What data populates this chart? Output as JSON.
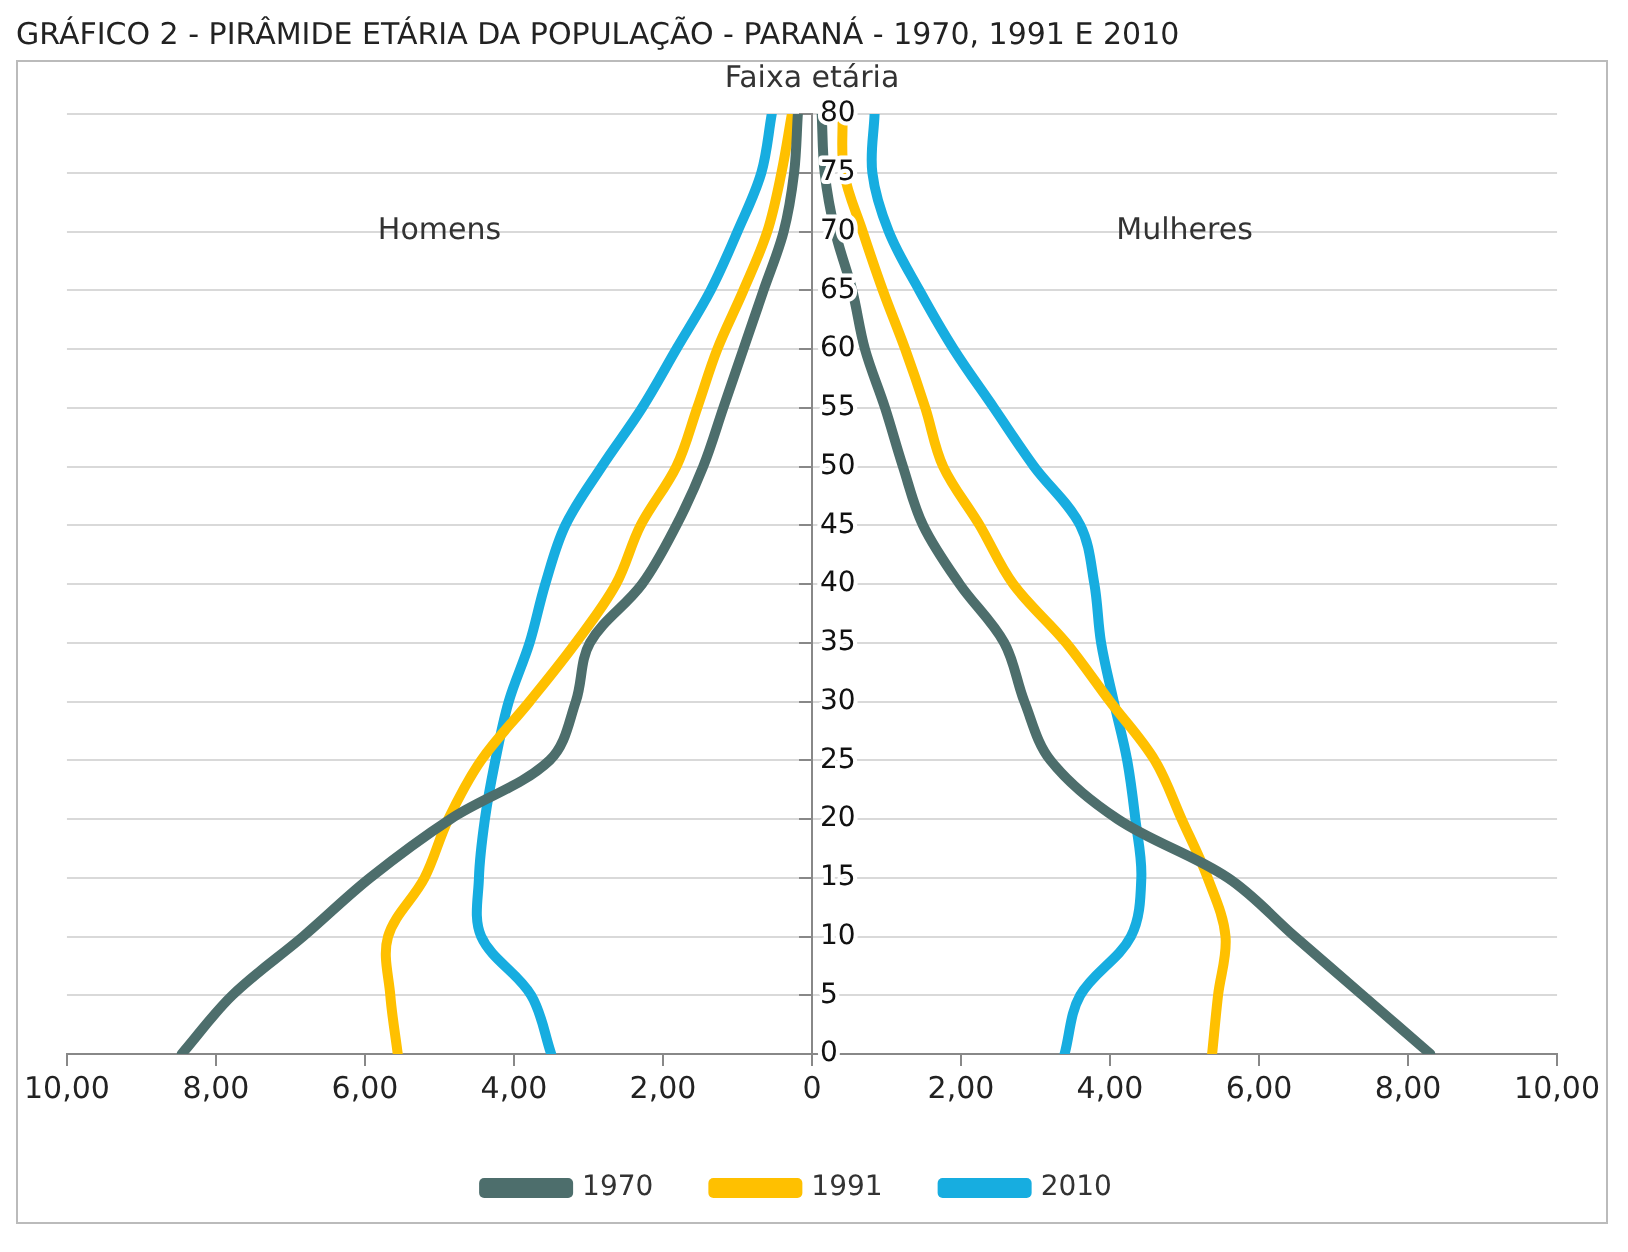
{
  "chart_data": {
    "type": "line",
    "title": "GRÁFICO 2 - PIRÂMIDE ETÁRIA DA POPULAÇÃO - PARANÁ - 1970, 1991 E 2010",
    "ylabel": "Faixa etária",
    "annotations": [
      "Homens",
      "Mulheres"
    ],
    "series": [
      {
        "name": "1970",
        "color": "#4d6e6c",
        "x": [
          -8.46,
          -7.78,
          -6.83,
          -5.93,
          -4.85,
          -3.52,
          -3.17,
          -2.98,
          -2.28,
          -1.82,
          -1.46,
          -1.19,
          -0.92,
          -0.65,
          -0.38,
          -0.24,
          -0.19,
          null,
          0.13,
          0.17,
          0.31,
          0.54,
          0.71,
          0.98,
          1.22,
          1.49,
          1.98,
          2.58,
          2.85,
          3.2,
          4.1,
          5.58,
          6.48,
          7.39,
          8.3
        ],
        "values": [
          0,
          5,
          10,
          15,
          20,
          25,
          30,
          35,
          40,
          45,
          50,
          55,
          60,
          65,
          70,
          75,
          80,
          null,
          80,
          75,
          70,
          65,
          60,
          55,
          50,
          45,
          40,
          35,
          30,
          25,
          20,
          15,
          10,
          5,
          0
        ]
      },
      {
        "name": "1991",
        "color": "#ffc000",
        "x": [
          -5.56,
          -5.66,
          -5.69,
          -5.2,
          -4.88,
          -4.44,
          -3.79,
          -3.17,
          -2.63,
          -2.3,
          -1.82,
          -1.54,
          -1.27,
          -0.92,
          -0.6,
          -0.41,
          -0.27,
          null,
          0.41,
          0.43,
          0.68,
          0.95,
          1.25,
          1.52,
          1.76,
          2.25,
          2.7,
          3.41,
          4.0,
          4.6,
          4.96,
          5.31,
          5.55,
          5.45,
          5.37
        ],
        "values": [
          0,
          5,
          10,
          15,
          20,
          25,
          30,
          35,
          40,
          45,
          50,
          55,
          60,
          65,
          70,
          75,
          80,
          null,
          80,
          75,
          70,
          65,
          60,
          55,
          50,
          45,
          40,
          35,
          30,
          25,
          20,
          15,
          10,
          5,
          0
        ]
      },
      {
        "name": "2010",
        "color": "#17ade0",
        "x": [
          -3.5,
          -3.77,
          -4.44,
          -4.47,
          -4.39,
          -4.25,
          -4.07,
          -3.79,
          -3.58,
          -3.31,
          -2.82,
          -2.28,
          -1.82,
          -1.36,
          -1.0,
          -0.68,
          -0.54,
          null,
          0.84,
          0.81,
          1.03,
          1.44,
          1.9,
          2.44,
          2.98,
          3.6,
          3.79,
          3.88,
          4.05,
          4.23,
          4.34,
          4.42,
          4.28,
          3.6,
          3.39
        ],
        "values": [
          0,
          5,
          10,
          15,
          20,
          25,
          30,
          35,
          40,
          45,
          50,
          55,
          60,
          65,
          70,
          75,
          80,
          null,
          80,
          75,
          70,
          65,
          60,
          55,
          50,
          45,
          40,
          35,
          30,
          25,
          20,
          15,
          10,
          5,
          0
        ]
      }
    ],
    "xlim": [
      -10,
      10
    ],
    "xticks": [
      {
        "value": -10,
        "label": "10,00"
      },
      {
        "value": -8,
        "label": "8,00"
      },
      {
        "value": -6,
        "label": "6,00"
      },
      {
        "value": -4,
        "label": "4,00"
      },
      {
        "value": -2,
        "label": "2,00"
      },
      0,
      {
        "value": 2,
        "label": "2,00"
      },
      {
        "value": 4,
        "label": "4,00"
      },
      {
        "value": 6,
        "label": "6,00"
      },
      {
        "value": 8,
        "label": "8,00"
      },
      {
        "value": 10,
        "label": "10,00"
      }
    ],
    "ylim": [
      0,
      80
    ],
    "yticks": [
      0,
      5,
      10,
      15,
      20,
      25,
      30,
      35,
      40,
      45,
      50,
      55,
      60,
      65,
      70,
      75,
      80
    ],
    "grid": "y",
    "legend": "bottom",
    "marker": "none"
  }
}
